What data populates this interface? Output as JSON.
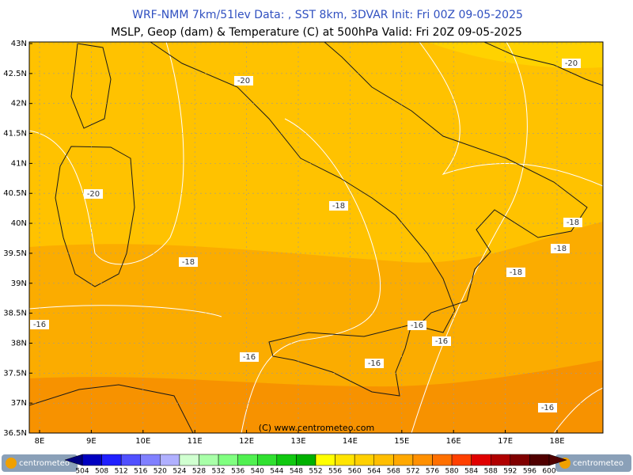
{
  "header": {
    "line1": "WRF-NMM 7km/51lev  Data: , SST 8km, 3DVAR  Init: Fri 00Z 09-05-2025",
    "line2": "MSLP, Geop (dam) & Temperature (C) at 500hPa  Valid: Fri 20Z 09-05-2025"
  },
  "map": {
    "lat_labels": [
      "43N",
      "42.5N",
      "42N",
      "41.5N",
      "41N",
      "40.5N",
      "40N",
      "39.5N",
      "39N",
      "38.5N",
      "38N",
      "37.5N",
      "37N",
      "36.5N"
    ],
    "lon_labels": [
      "8E",
      "9E",
      "10E",
      "11E",
      "12E",
      "13E",
      "14E",
      "15E",
      "16E",
      "17E",
      "18E"
    ],
    "contour_labels": [
      "-20",
      "-20",
      "-20",
      "-18",
      "-18",
      "-18",
      "-18",
      "-18",
      "-16",
      "-16",
      "-16",
      "-16",
      "-16",
      "-16"
    ],
    "copyright": "(C) www.centrometeo.com"
  },
  "legend": {
    "values": [
      504,
      508,
      512,
      516,
      520,
      524,
      528,
      532,
      536,
      540,
      544,
      548,
      552,
      556,
      560,
      564,
      568,
      572,
      576,
      580,
      584,
      588,
      592,
      596,
      600
    ],
    "colors": [
      "#000080",
      "#0000c0",
      "#2020ff",
      "#5050ff",
      "#8080ff",
      "#b0b0ff",
      "#d0ffd0",
      "#a8ffa8",
      "#80ff80",
      "#50f050",
      "#30e030",
      "#10c810",
      "#00b000",
      "#ffff00",
      "#ffe400",
      "#ffd000",
      "#ffbe00",
      "#ffa800",
      "#ff9000",
      "#ff7000",
      "#ff4000",
      "#e00000",
      "#b00000",
      "#800000",
      "#500000"
    ]
  },
  "logos": {
    "left": "centrometeo",
    "right": "centrometeo"
  }
}
